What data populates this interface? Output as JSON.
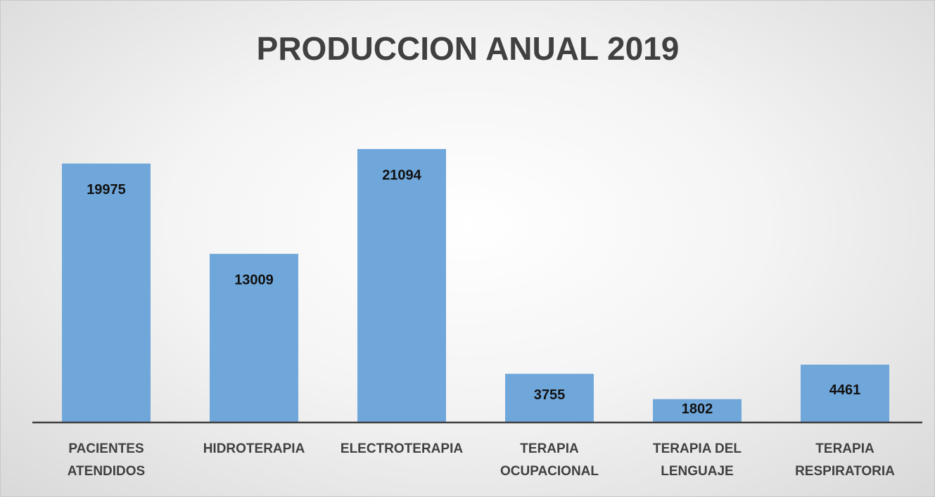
{
  "chart_data": {
    "type": "bar",
    "title": "PRODUCCION ANUAL 2019",
    "categories": [
      "PACIENTES ATENDIDOS",
      "HIDROTERAPIA",
      "ELECTROTERAPIA",
      "TERAPIA OCUPACIONAL",
      "TERAPIA DEL LENGUAJE",
      "TERAPIA RESPIRATORIA"
    ],
    "values": [
      19975,
      13009,
      21094,
      3755,
      1802,
      4461
    ],
    "color": "#70a7db"
  }
}
